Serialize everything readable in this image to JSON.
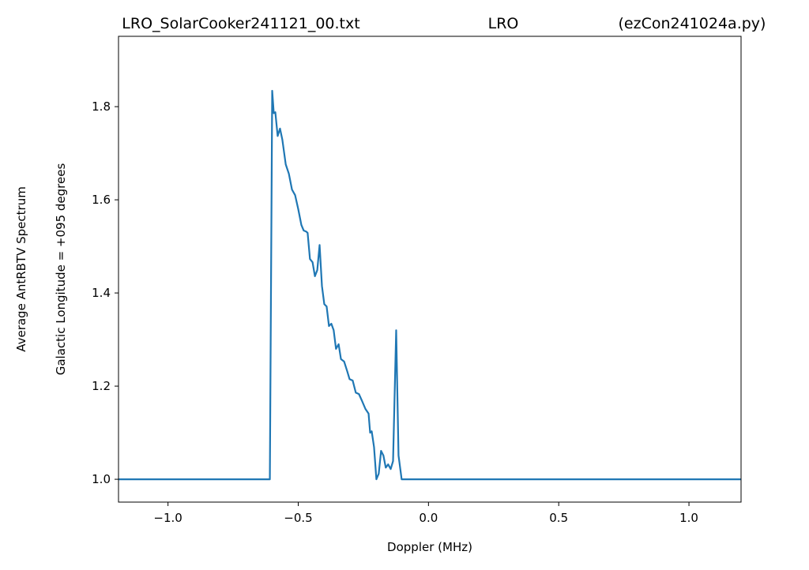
{
  "chart_data": {
    "type": "line",
    "title_parts": [
      "LRO_SolarCooker241121_00.txt",
      "LRO",
      "(ezCon241024a.py)"
    ],
    "y_label_lines": [
      "Average AntRBTV Spectrum",
      "Galactic Longitude = +095 degrees"
    ],
    "x_label": "Doppler (MHz)",
    "color": "#1f77b4",
    "x": [
      -1.19,
      -0.609,
      -0.6,
      -0.594,
      -0.588,
      -0.579,
      -0.57,
      -0.561,
      -0.548,
      -0.536,
      -0.524,
      -0.512,
      -0.5,
      -0.488,
      -0.479,
      -0.47,
      -0.464,
      -0.455,
      -0.445,
      -0.436,
      -0.427,
      -0.418,
      -0.409,
      -0.4,
      -0.391,
      -0.382,
      -0.373,
      -0.364,
      -0.355,
      -0.345,
      -0.336,
      -0.324,
      -0.312,
      -0.303,
      -0.291,
      -0.279,
      -0.267,
      -0.255,
      -0.242,
      -0.23,
      -0.224,
      -0.218,
      -0.209,
      -0.2,
      -0.191,
      -0.182,
      -0.173,
      -0.164,
      -0.155,
      -0.145,
      -0.136,
      -0.124,
      -0.115,
      -0.103,
      1.2
    ],
    "values": [
      1.0,
      1.0,
      1.834,
      1.786,
      1.788,
      1.737,
      1.753,
      1.729,
      1.676,
      1.656,
      1.622,
      1.61,
      1.58,
      1.546,
      1.534,
      1.532,
      1.529,
      1.473,
      1.466,
      1.436,
      1.449,
      1.503,
      1.415,
      1.376,
      1.371,
      1.329,
      1.334,
      1.32,
      1.28,
      1.29,
      1.258,
      1.253,
      1.232,
      1.215,
      1.212,
      1.186,
      1.183,
      1.168,
      1.151,
      1.141,
      1.1,
      1.103,
      1.069,
      1.0,
      1.012,
      1.061,
      1.051,
      1.025,
      1.032,
      1.022,
      1.039,
      1.32,
      1.051,
      1.0,
      1.0
    ],
    "xlim": [
      -1.19,
      1.2
    ],
    "ylim": [
      0.951,
      1.951
    ],
    "xticks": [
      {
        "value": -1,
        "label": "−1.0"
      },
      {
        "value": -0.5,
        "label": "−0.5"
      },
      {
        "value": 0,
        "label": "0.0"
      },
      {
        "value": 0.5,
        "label": "0.5"
      },
      {
        "value": 1,
        "label": "1.0"
      }
    ],
    "yticks": [
      {
        "value": 1,
        "label": "1.0"
      },
      1.2,
      1.4,
      1.6,
      1.8
    ],
    "grid": false
  }
}
